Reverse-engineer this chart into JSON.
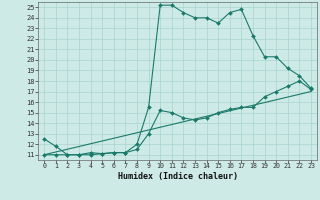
{
  "title": "",
  "xlabel": "Humidex (Indice chaleur)",
  "background_color": "#ceeae6",
  "grid_color": "#aad4ce",
  "line_color": "#1a7a6a",
  "xlim": [
    -0.5,
    23.5
  ],
  "ylim": [
    10.5,
    25.5
  ],
  "xticks": [
    0,
    1,
    2,
    3,
    4,
    5,
    6,
    7,
    8,
    9,
    10,
    11,
    12,
    13,
    14,
    15,
    16,
    17,
    18,
    19,
    20,
    21,
    22,
    23
  ],
  "yticks": [
    11,
    12,
    13,
    14,
    15,
    16,
    17,
    18,
    19,
    20,
    21,
    22,
    23,
    24,
    25
  ],
  "series": [
    {
      "x": [
        0,
        1,
        2,
        3,
        4,
        5,
        6,
        7,
        8,
        9,
        10,
        11,
        12,
        13,
        14,
        15,
        16,
        17,
        18,
        19,
        20,
        21,
        22,
        23
      ],
      "y": [
        12.5,
        11.8,
        11.0,
        11.0,
        11.2,
        11.1,
        11.2,
        11.2,
        12.0,
        15.5,
        25.2,
        25.2,
        24.5,
        24.0,
        24.0,
        23.5,
        24.5,
        24.8,
        22.3,
        20.3,
        20.3,
        19.2,
        18.5,
        17.3
      ]
    },
    {
      "x": [
        0,
        1,
        2,
        3,
        4,
        5,
        6,
        7,
        8,
        9,
        10,
        11,
        12,
        13,
        14,
        15,
        16,
        17,
        18,
        19,
        20,
        21,
        22,
        23
      ],
      "y": [
        11.0,
        11.0,
        11.0,
        11.0,
        11.0,
        11.1,
        11.2,
        11.2,
        11.5,
        13.0,
        15.2,
        15.0,
        14.5,
        14.3,
        14.5,
        15.0,
        15.3,
        15.5,
        15.5,
        16.5,
        17.0,
        17.5,
        18.0,
        17.2
      ]
    },
    {
      "x": [
        0,
        23
      ],
      "y": [
        11.0,
        17.0
      ]
    }
  ]
}
